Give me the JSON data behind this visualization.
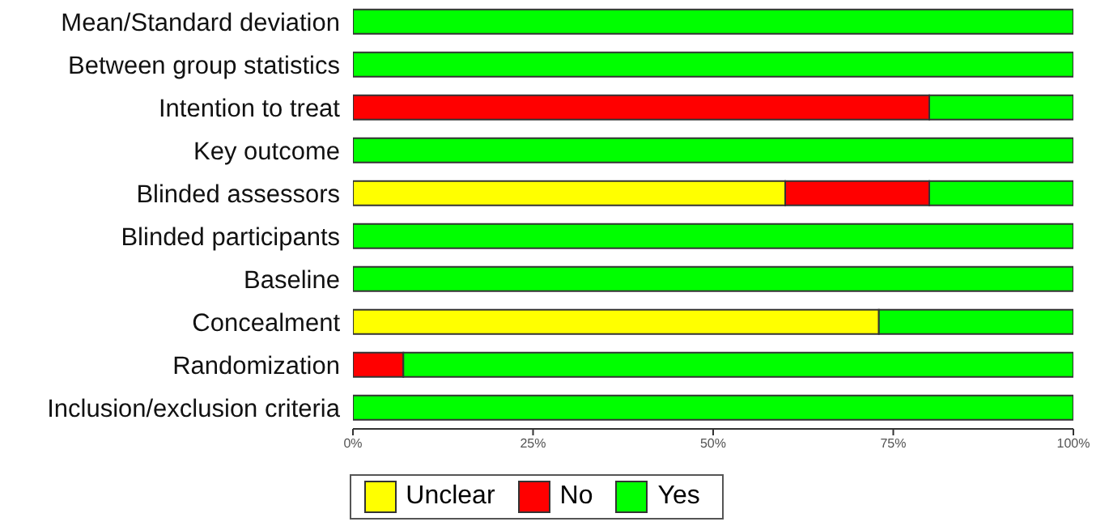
{
  "chart_data": {
    "type": "bar",
    "orientation": "horizontal",
    "stacked": true,
    "categories": [
      "Mean/Standard deviation",
      "Between group statistics",
      "Intention to treat",
      "Key outcome",
      "Blinded assessors",
      "Blinded participants",
      "Baseline",
      "Concealment",
      "Randomization",
      "Inclusion/exclusion criteria"
    ],
    "series": [
      {
        "name": "Unclear",
        "color": "#ffff00",
        "values": [
          0,
          0,
          0,
          0,
          60,
          0,
          0,
          73,
          0,
          0
        ]
      },
      {
        "name": "No",
        "color": "#ff0000",
        "values": [
          0,
          0,
          80,
          0,
          20,
          0,
          0,
          0,
          7,
          0
        ]
      },
      {
        "name": "Yes",
        "color": "#00ff00",
        "values": [
          100,
          100,
          20,
          100,
          20,
          100,
          100,
          27,
          93,
          100
        ]
      }
    ],
    "xlim": [
      0,
      100
    ],
    "xticks": [
      {
        "value": 0,
        "label": "0%"
      },
      {
        "value": 25,
        "label": "25%"
      },
      {
        "value": 50,
        "label": "50%"
      },
      {
        "value": 75,
        "label": "75%"
      },
      {
        "value": 100,
        "label": "100%"
      }
    ],
    "grid": false,
    "legend": "bottom"
  }
}
